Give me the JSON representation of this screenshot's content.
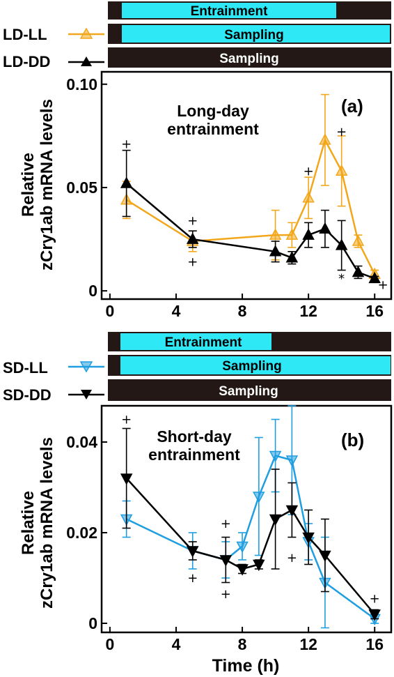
{
  "colors": {
    "ld_ll": "#f2a71b",
    "ld_dd": "#000000",
    "sd_ll": "#1f9ee0",
    "sd_dd": "#000000",
    "cyan_bar": "#2ee8f6",
    "dark_bar": "#231815"
  },
  "chart_data": [
    {
      "type": "line",
      "panel_label": "(a)",
      "annotation": [
        "Long-day",
        "entrainment"
      ],
      "ylabel": [
        "Relative",
        "zCry1ab mRNA levels"
      ],
      "xlabel": "",
      "xlim": [
        -0.5,
        17
      ],
      "ylim": [
        -0.004,
        0.106
      ],
      "xticks": [
        0,
        4,
        8,
        12,
        16
      ],
      "yticks": [
        {
          "v": 0,
          "label": "0"
        },
        {
          "v": 0.05,
          "label": "0.05"
        },
        {
          "v": 0.1,
          "label": "0.10"
        }
      ],
      "bars": [
        {
          "kind": "entrainment",
          "text": "Entrainment"
        },
        {
          "kind": "sampling-ll",
          "text": "Sampling",
          "legend": "LD-LL"
        },
        {
          "kind": "sampling-dd",
          "text": "Sampling",
          "legend": "LD-DD"
        }
      ],
      "series": [
        {
          "name": "LD-LL",
          "marker": "triangle-up",
          "colorKey": "ld_ll",
          "x": [
            1,
            5,
            10,
            11,
            12,
            13,
            14,
            15,
            16
          ],
          "y": [
            0.044,
            0.024,
            0.027,
            0.027,
            0.045,
            0.073,
            0.058,
            0.024,
            0.008
          ],
          "err": [
            0.009,
            0.005,
            0.012,
            0.006,
            0.01,
            0.022,
            0.017,
            0.003,
            0.002
          ]
        },
        {
          "name": "LD-DD",
          "marker": "triangle-up",
          "colorKey": "ld_dd",
          "x": [
            1,
            5,
            10,
            11,
            12,
            13,
            14,
            15,
            16
          ],
          "y": [
            0.052,
            0.025,
            0.019,
            0.016,
            0.027,
            0.03,
            0.022,
            0.009,
            0.006
          ],
          "err": [
            0.016,
            0.004,
            0.005,
            0.003,
            0.006,
            0.009,
            0.012,
            0.003,
            0.001
          ]
        }
      ],
      "marks": [
        {
          "x": 1,
          "y": 0.071,
          "s": "+"
        },
        {
          "x": 5,
          "y": 0.034,
          "s": "+"
        },
        {
          "x": 5,
          "y": 0.014,
          "s": "+"
        },
        {
          "x": 12,
          "y": 0.058,
          "s": "+"
        },
        {
          "x": 14,
          "y": 0.077,
          "s": "+"
        },
        {
          "x": 14,
          "y": 0.006,
          "s": "*"
        },
        {
          "x": 16.5,
          "y": 0.003,
          "s": "+"
        }
      ]
    },
    {
      "type": "line",
      "panel_label": "(b)",
      "annotation": [
        "Short-day",
        "entrainment"
      ],
      "ylabel": [
        "Relative",
        "zCry1ab mRNA levels"
      ],
      "xlabel": "Time (h)",
      "xlim": [
        -0.5,
        17
      ],
      "ylim": [
        -0.002,
        0.048
      ],
      "xticks": [
        0,
        4,
        8,
        12,
        16
      ],
      "yticks": [
        {
          "v": 0,
          "label": "0"
        },
        {
          "v": 0.02,
          "label": "0.02"
        },
        {
          "v": 0.04,
          "label": "0.04"
        }
      ],
      "bars": [
        {
          "kind": "entrainment",
          "text": "Entrainment"
        },
        {
          "kind": "sampling-ll",
          "text": "Sampling",
          "legend": "SD-LL"
        },
        {
          "kind": "sampling-dd",
          "text": "Sampling",
          "legend": "SD-DD"
        }
      ],
      "series": [
        {
          "name": "SD-LL",
          "marker": "triangle-down",
          "colorKey": "sd_ll",
          "x": [
            1,
            5,
            7,
            8,
            9,
            10,
            11,
            12,
            13,
            16
          ],
          "y": [
            0.023,
            0.016,
            0.014,
            0.017,
            0.028,
            0.037,
            0.036,
            0.018,
            0.009,
            0.001
          ],
          "err": [
            0.004,
            0.004,
            0.004,
            0.003,
            0.013,
            0.008,
            0.012,
            0.004,
            0.01,
            0.001
          ]
        },
        {
          "name": "SD-DD",
          "marker": "triangle-down",
          "colorKey": "sd_dd",
          "x": [
            1,
            5,
            7,
            8,
            9,
            10,
            11,
            12,
            13,
            16
          ],
          "y": [
            0.032,
            0.016,
            0.014,
            0.012,
            0.013,
            0.023,
            0.025,
            0.019,
            0.015,
            0.002
          ],
          "err": [
            0.011,
            0.002,
            0.005,
            0.001,
            0.001,
            0.011,
            0.006,
            0.006,
            0.008,
            0.001
          ]
        }
      ],
      "marks": [
        {
          "x": 1,
          "y": 0.045,
          "s": "+"
        },
        {
          "x": 5,
          "y": 0.01,
          "s": "+"
        },
        {
          "x": 7,
          "y": 0.022,
          "s": "+"
        },
        {
          "x": 7,
          "y": 0.0065,
          "s": "+"
        },
        {
          "x": 11,
          "y": 0.0145,
          "s": "+"
        },
        {
          "x": 16,
          "y": 0.0055,
          "s": "+"
        }
      ]
    }
  ]
}
